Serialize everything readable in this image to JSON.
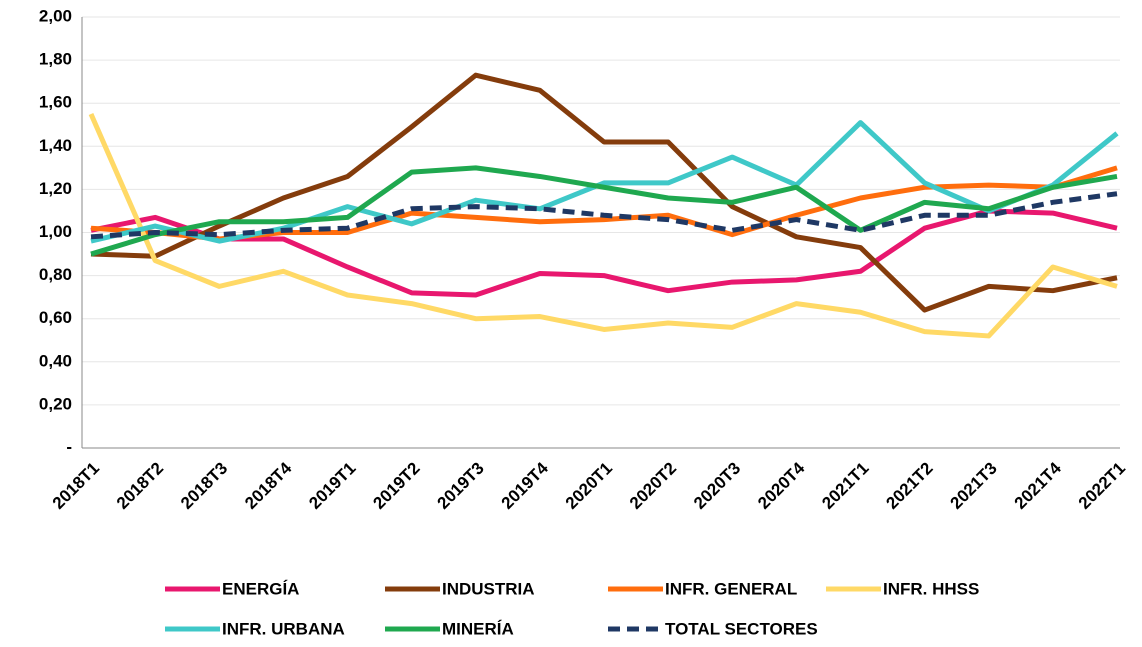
{
  "chart_data": {
    "type": "line",
    "categories": [
      "2018T1",
      "2018T2",
      "2018T3",
      "2018T4",
      "2019T1",
      "2019T2",
      "2019T3",
      "2019T4",
      "2020T1",
      "2020T2",
      "2020T3",
      "2020T4",
      "2021T1",
      "2021T2",
      "2021T3",
      "2021T4",
      "2022T1"
    ],
    "ylim": [
      0,
      2
    ],
    "yticks": [
      {
        "value": 0,
        "label": "-"
      },
      {
        "value": 0.2,
        "label": "0,20"
      },
      {
        "value": 0.4,
        "label": "0,40"
      },
      {
        "value": 0.6,
        "label": "0,60"
      },
      {
        "value": 0.8,
        "label": "0,80"
      },
      {
        "value": 1,
        "label": "1,00"
      },
      {
        "value": 1.2,
        "label": "1,20"
      },
      {
        "value": 1.4,
        "label": "1,40"
      },
      {
        "value": 1.6,
        "label": "1,60"
      },
      {
        "value": 1.8,
        "label": "1,80"
      },
      {
        "value": 2,
        "label": "2,00"
      }
    ],
    "grid": true,
    "series": [
      {
        "name": "ENERGÍA",
        "color": "#e8176e",
        "line_style": "solid",
        "values": [
          1.01,
          1.07,
          0.97,
          0.97,
          0.84,
          0.72,
          0.71,
          0.81,
          0.8,
          0.73,
          0.77,
          0.78,
          0.82,
          1.02,
          1.1,
          1.09,
          1.02
        ]
      },
      {
        "name": "INDUSTRIA",
        "color": "#843c0c",
        "line_style": "solid",
        "values": [
          0.9,
          0.89,
          1.03,
          1.16,
          1.26,
          1.49,
          1.73,
          1.66,
          1.42,
          1.42,
          1.12,
          0.98,
          0.93,
          0.64,
          0.75,
          0.73,
          0.79
        ]
      },
      {
        "name": "INFR. GENERAL",
        "color": "#ff6d0d",
        "line_style": "solid",
        "values": [
          1.02,
          1.0,
          0.97,
          1.0,
          1.0,
          1.09,
          1.07,
          1.05,
          1.06,
          1.08,
          0.99,
          1.08,
          1.16,
          1.21,
          1.22,
          1.21,
          1.3
        ]
      },
      {
        "name": "INFR. HHSS",
        "color": "#ffd966",
        "line_style": "solid",
        "values": [
          1.55,
          0.87,
          0.75,
          0.82,
          0.71,
          0.67,
          0.6,
          0.61,
          0.55,
          0.58,
          0.56,
          0.67,
          0.63,
          0.54,
          0.52,
          0.84,
          0.75
        ]
      },
      {
        "name": "INFR. URBANA",
        "color": "#3fc8c8",
        "line_style": "solid",
        "values": [
          0.96,
          1.03,
          0.96,
          1.02,
          1.12,
          1.04,
          1.15,
          1.11,
          1.23,
          1.23,
          1.35,
          1.22,
          1.51,
          1.23,
          1.1,
          1.22,
          1.46
        ]
      },
      {
        "name": "MINERÍA",
        "color": "#1fa84f",
        "line_style": "solid",
        "values": [
          0.9,
          0.99,
          1.05,
          1.05,
          1.07,
          1.28,
          1.3,
          1.26,
          1.21,
          1.16,
          1.14,
          1.21,
          1.01,
          1.14,
          1.11,
          1.21,
          1.26
        ]
      },
      {
        "name": "TOTAL SECTORES",
        "color": "#1f3864",
        "line_style": "dashed",
        "values": [
          0.98,
          1.0,
          0.99,
          1.01,
          1.02,
          1.11,
          1.12,
          1.11,
          1.08,
          1.06,
          1.01,
          1.06,
          1.01,
          1.08,
          1.08,
          1.14,
          1.18
        ]
      }
    ]
  }
}
